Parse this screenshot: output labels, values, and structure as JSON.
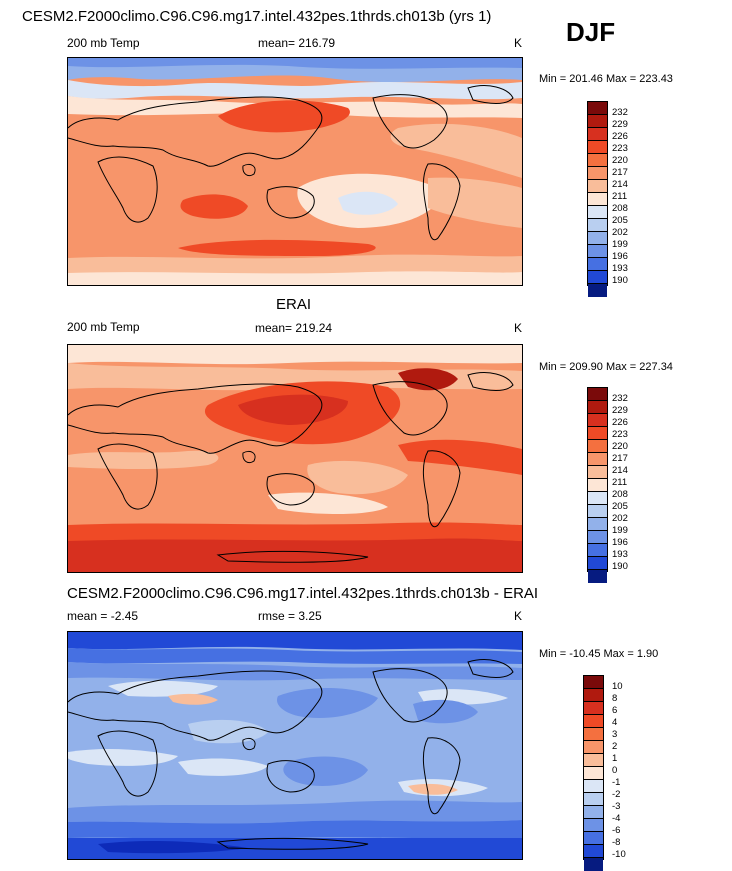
{
  "season": "DJF",
  "panels": [
    {
      "title": "CESM2.F2000climo.C96.C96.mg17.intel.432pes.1thrds.ch013b (yrs 1)",
      "left_label": "200 mb Temp",
      "mean_label": "mean= 216.79",
      "units": "K",
      "minmax": "Min = 201.46 Max = 223.43",
      "colorbar_labels": [
        "232",
        "229",
        "226",
        "223",
        "220",
        "217",
        "214",
        "211",
        "208",
        "205",
        "202",
        "199",
        "196",
        "193",
        "190"
      ]
    },
    {
      "title": "ERAI",
      "left_label": "200 mb Temp",
      "mean_label": "mean= 219.24",
      "units": "K",
      "minmax": "Min = 209.90 Max = 227.34",
      "colorbar_labels": [
        "232",
        "229",
        "226",
        "223",
        "220",
        "217",
        "214",
        "211",
        "208",
        "205",
        "202",
        "199",
        "196",
        "193",
        "190"
      ]
    },
    {
      "title": "CESM2.F2000climo.C96.C96.mg17.intel.432pes.1thrds.ch013b - ERAI",
      "left_label": "mean =  -2.45",
      "mean_label": "rmse =   3.25",
      "units": "K",
      "minmax": "Min = -10.45 Max =   1.90",
      "colorbar_labels": [
        "10",
        "8",
        "6",
        "4",
        "3",
        "2",
        "1",
        "0",
        "-1",
        "-2",
        "-3",
        "-4",
        "-6",
        "-8",
        "-10"
      ]
    }
  ],
  "colors": {
    "scale": [
      "#7a0a0a",
      "#b01a0f",
      "#d7301f",
      "#ef4a26",
      "#f4703f",
      "#f7956a",
      "#f9bd9a",
      "#fde6d6",
      "#dbe6f6",
      "#b9cff0",
      "#92b1ea",
      "#6d92e6",
      "#4670e2",
      "#2149d6",
      "#0d2bb9",
      "#061b80"
    ],
    "continent_line": "#000000"
  }
}
